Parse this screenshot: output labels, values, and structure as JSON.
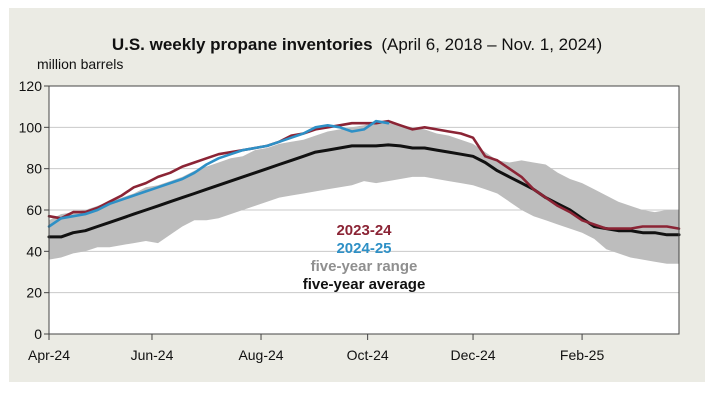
{
  "chart_data": {
    "type": "line",
    "title": "U.S. weekly propane inventories",
    "subtitle": "(April 6, 2018 – Nov. 1, 2024)",
    "ylabel": "million barrels",
    "xlabel": "",
    "ylim": [
      0,
      120
    ],
    "xlim": [
      0,
      52
    ],
    "grid": "horizontal",
    "yticks": [
      "0",
      "20",
      "40",
      "60",
      "80",
      "100",
      "120"
    ],
    "xticks": [
      {
        "label": "Apr-24",
        "week": 0
      },
      {
        "label": "Jun-24",
        "week": 8.5
      },
      {
        "label": "Aug-24",
        "week": 17.5
      },
      {
        "label": "Oct-24",
        "week": 26.3
      },
      {
        "label": "Dec-24",
        "week": 35
      },
      {
        "label": "Feb-25",
        "week": 44
      }
    ],
    "legend": {
      "position": "center",
      "entries": [
        "2023-24",
        "2024-25",
        "five-year range",
        "five-year average"
      ]
    },
    "range": {
      "name": "five-year range",
      "x": [
        0,
        1,
        2,
        3,
        4,
        5,
        6,
        7,
        8,
        9,
        10,
        11,
        12,
        13,
        14,
        15,
        16,
        17,
        18,
        19,
        20,
        21,
        22,
        23,
        24,
        25,
        26,
        27,
        28,
        29,
        30,
        31,
        32,
        33,
        34,
        35,
        36,
        37,
        38,
        39,
        40,
        41,
        42,
        43,
        44,
        45,
        46,
        47,
        48,
        49,
        50,
        51,
        52
      ],
      "low": [
        36,
        37,
        39,
        40,
        42,
        42,
        43,
        44,
        45,
        44,
        48,
        52,
        55,
        55,
        56,
        58,
        60,
        62,
        64,
        66,
        67,
        68,
        69,
        70,
        71,
        72,
        74,
        73,
        74,
        75,
        76,
        76,
        75,
        74,
        73,
        72,
        70,
        68,
        64,
        60,
        57,
        55,
        53,
        51,
        49,
        46,
        41,
        39,
        37,
        36,
        35,
        34,
        34
      ],
      "high": [
        55,
        58,
        59,
        60,
        62,
        64,
        66,
        68,
        71,
        72,
        74,
        76,
        79,
        81,
        83,
        85,
        86,
        89,
        90,
        92,
        93,
        94,
        96,
        98,
        99,
        100,
        101,
        103,
        102,
        101,
        100,
        99,
        97,
        96,
        94,
        92,
        88,
        84,
        83,
        84,
        83,
        82,
        78,
        75,
        73,
        70,
        67,
        64,
        62,
        60,
        59,
        60,
        60
      ]
    },
    "series": [
      {
        "name": "five-year average",
        "color": "#111111",
        "x": [
          0,
          1,
          2,
          3,
          4,
          5,
          6,
          7,
          8,
          9,
          10,
          11,
          12,
          13,
          14,
          15,
          16,
          17,
          18,
          19,
          20,
          21,
          22,
          23,
          24,
          25,
          26,
          27,
          28,
          29,
          30,
          31,
          32,
          33,
          34,
          35,
          36,
          37,
          38,
          39,
          40,
          41,
          42,
          43,
          44,
          45,
          46,
          47,
          48,
          49,
          50,
          51,
          52
        ],
        "values": [
          47,
          47,
          49,
          50,
          52,
          54,
          56,
          58,
          60,
          62,
          64,
          66,
          68,
          70,
          72,
          74,
          76,
          78,
          80,
          82,
          84,
          86,
          88,
          89,
          90,
          91,
          91,
          91,
          91.5,
          91,
          90,
          90,
          89,
          88,
          87,
          86,
          83,
          79,
          76,
          73,
          70,
          66,
          63,
          60,
          56,
          52,
          51,
          50,
          50,
          49,
          49,
          48,
          48
        ]
      },
      {
        "name": "2023-24",
        "color": "#8b2435",
        "x": [
          0,
          1,
          2,
          3,
          4,
          5,
          6,
          7,
          8,
          9,
          10,
          11,
          12,
          13,
          14,
          15,
          16,
          17,
          18,
          19,
          20,
          21,
          22,
          23,
          24,
          25,
          26,
          27,
          28,
          29,
          30,
          31,
          32,
          33,
          34,
          35,
          36,
          37,
          38,
          39,
          40,
          41,
          42,
          43,
          44,
          45,
          46,
          47,
          48,
          49,
          50,
          51,
          52
        ],
        "values": [
          57,
          56,
          59,
          59,
          61,
          64,
          67,
          71,
          73,
          76,
          78,
          81,
          83,
          85,
          87,
          88,
          89,
          90,
          91,
          93,
          96,
          97,
          99,
          100,
          101,
          102,
          102,
          102,
          103,
          101,
          99,
          100,
          99,
          98,
          97,
          95,
          86,
          84,
          80,
          76,
          70,
          66,
          62,
          59,
          55,
          53,
          51,
          51,
          51,
          52,
          52,
          52,
          51
        ]
      },
      {
        "name": "2024-25",
        "color": "#2e90c6",
        "x": [
          0,
          1,
          2,
          3,
          4,
          5,
          6,
          7,
          8,
          9,
          10,
          11,
          12,
          13,
          14,
          15,
          16,
          17,
          18,
          19,
          20,
          21,
          22,
          23,
          24,
          25,
          26,
          27,
          28
        ],
        "values": [
          52,
          56,
          57,
          58,
          60,
          63,
          65,
          67,
          69,
          71,
          73,
          75,
          78,
          82,
          85,
          87,
          89,
          90,
          91,
          93,
          95,
          97,
          100,
          101,
          100,
          98,
          99,
          103,
          102
        ]
      }
    ]
  }
}
